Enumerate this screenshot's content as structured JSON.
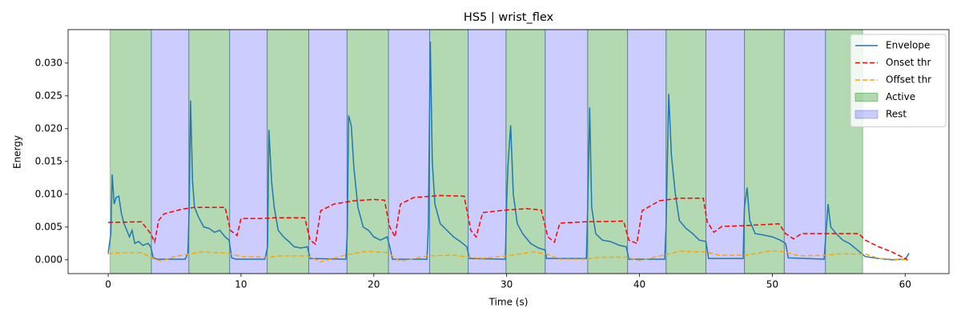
{
  "chart_data": {
    "type": "line",
    "title": "HS5 | wrist_flex",
    "xlabel": "Time (s)",
    "ylabel": "Energy",
    "xlim": [
      -3.02,
      63.3
    ],
    "ylim": [
      -0.0021,
      0.0351
    ],
    "xticks": [
      0,
      10,
      20,
      30,
      40,
      50,
      60
    ],
    "yticks": [
      {
        "value": 0,
        "label": "0.000"
      },
      0.005,
      {
        "value": 0.01,
        "label": "0.010"
      },
      0.015,
      {
        "value": 0.02,
        "label": "0.020"
      },
      0.025,
      {
        "value": 0.03,
        "label": "0.030"
      }
    ],
    "legend": "upper right",
    "series": [
      {
        "name": "Envelope",
        "color": "#1f77b4",
        "linestyle": "solid",
        "x": [
          0,
          0.2,
          0.3,
          0.45,
          0.6,
          0.8,
          1.0,
          1.2,
          1.4,
          1.6,
          1.8,
          2.0,
          2.3,
          2.6,
          3.0,
          3.2,
          3.4,
          3.7,
          5.8,
          6.0,
          6.1,
          6.2,
          6.35,
          6.5,
          6.8,
          7.2,
          7.6,
          8.0,
          8.4,
          8.8,
          9.1,
          9.3,
          9.6,
          11.8,
          12.0,
          12.1,
          12.3,
          12.5,
          12.8,
          13.2,
          13.6,
          14.0,
          14.5,
          15.0,
          15.2,
          17.9,
          18.0,
          18.1,
          18.3,
          18.5,
          18.8,
          19.2,
          19.6,
          20.0,
          20.5,
          21.0,
          21.2,
          21.4,
          24.0,
          24.1,
          24.25,
          24.4,
          24.6,
          25.0,
          25.5,
          26.0,
          26.5,
          27.0,
          27.2,
          29.9,
          30.0,
          30.1,
          30.3,
          30.5,
          30.8,
          31.2,
          31.8,
          32.4,
          32.9,
          33.0,
          36.0,
          36.1,
          36.25,
          36.4,
          36.7,
          37.2,
          37.8,
          38.5,
          39.0,
          39.2,
          41.9,
          42.0,
          42.2,
          42.4,
          42.7,
          43.0,
          43.5,
          44.0,
          44.5,
          45.0,
          45.2,
          47.8,
          47.9,
          48.1,
          48.3,
          48.7,
          49.3,
          50.0,
          50.6,
          51.0,
          51.2,
          53.9,
          54.0,
          54.2,
          54.4,
          54.8,
          55.3,
          55.8,
          56.4,
          57.0,
          58,
          59,
          60.0,
          60.3
        ],
        "values": [
          0.001,
          0.004,
          0.013,
          0.0085,
          0.0095,
          0.0097,
          0.007,
          0.0055,
          0.0045,
          0.0035,
          0.0045,
          0.0025,
          0.0028,
          0.0022,
          0.0025,
          0.002,
          0.0003,
          0.0001,
          0.0001,
          0.001,
          0.008,
          0.0243,
          0.012,
          0.008,
          0.0065,
          0.005,
          0.0048,
          0.0042,
          0.0045,
          0.0035,
          0.003,
          0.0003,
          0.0001,
          0.0001,
          0.002,
          0.0198,
          0.012,
          0.008,
          0.0045,
          0.0035,
          0.0028,
          0.002,
          0.0018,
          0.002,
          0.0002,
          0.0001,
          0.004,
          0.022,
          0.0205,
          0.014,
          0.008,
          0.005,
          0.0045,
          0.0035,
          0.003,
          0.0035,
          0.002,
          0.0001,
          0.0001,
          0.005,
          0.0333,
          0.015,
          0.0085,
          0.0055,
          0.0045,
          0.0035,
          0.0028,
          0.002,
          0.0002,
          0.0001,
          0.009,
          0.0145,
          0.0205,
          0.01,
          0.0055,
          0.004,
          0.0025,
          0.0018,
          0.0015,
          0.0002,
          0.0002,
          0.008,
          0.0232,
          0.008,
          0.004,
          0.003,
          0.0028,
          0.0022,
          0.002,
          0.0001,
          0.0001,
          0.005,
          0.0253,
          0.016,
          0.01,
          0.006,
          0.0048,
          0.004,
          0.003,
          0.0028,
          0.0002,
          0.0002,
          0.008,
          0.011,
          0.006,
          0.004,
          0.0038,
          0.0035,
          0.003,
          0.0025,
          0.0003,
          0.0001,
          0.003,
          0.0085,
          0.005,
          0.004,
          0.003,
          0.0025,
          0.0015,
          0.0005,
          0.0002,
          0.0,
          0.0001,
          0.001
        ]
      },
      {
        "name": "Onset thr",
        "color": "#ff0000",
        "linestyle": "dashed",
        "x": [
          0,
          2.5,
          3.2,
          3.5,
          3.8,
          4.2,
          5.5,
          6.5,
          8.8,
          9.2,
          9.7,
          10.0,
          11.5,
          12.5,
          14.8,
          15.2,
          15.6,
          16.0,
          17,
          18.5,
          20,
          20.8,
          21.2,
          21.6,
          22,
          23,
          25,
          26.8,
          27.3,
          27.7,
          28.2,
          30,
          31.5,
          32.6,
          33.1,
          33.6,
          34,
          36,
          38.8,
          39.2,
          39.8,
          40.2,
          41.5,
          43,
          44.8,
          45.1,
          45.6,
          46.2,
          47.8,
          50.5,
          51.0,
          51.6,
          52.2,
          54,
          56.5,
          57,
          58,
          59,
          60.2
        ],
        "values": [
          0.0057,
          0.0058,
          0.004,
          0.0027,
          0.006,
          0.007,
          0.0077,
          0.008,
          0.008,
          0.0045,
          0.0037,
          0.0063,
          0.0063,
          0.0064,
          0.0064,
          0.003,
          0.0024,
          0.0075,
          0.0085,
          0.009,
          0.0092,
          0.0091,
          0.005,
          0.0035,
          0.0085,
          0.0095,
          0.0098,
          0.0097,
          0.0045,
          0.0035,
          0.0072,
          0.0076,
          0.0078,
          0.0076,
          0.0035,
          0.0027,
          0.0056,
          0.0058,
          0.0059,
          0.003,
          0.0025,
          0.0075,
          0.009,
          0.0094,
          0.0094,
          0.0058,
          0.0042,
          0.0051,
          0.0052,
          0.0055,
          0.004,
          0.0032,
          0.004,
          0.004,
          0.004,
          0.003,
          0.002,
          0.0012,
          0.0
        ]
      },
      {
        "name": "Offset thr",
        "color": "#ffa500",
        "linestyle": "dashed",
        "x": [
          0,
          1,
          2.5,
          3.5,
          4,
          5,
          7,
          9,
          10,
          12,
          13,
          15,
          16,
          18,
          19.5,
          21,
          22,
          24,
          26,
          28,
          30,
          32,
          33,
          34,
          36,
          37,
          39,
          40,
          42,
          43,
          45,
          46,
          48,
          50,
          51,
          52,
          54,
          55,
          57,
          58,
          60.2
        ],
        "values": [
          0.0009,
          0.0011,
          0.0011,
          0.0001,
          -0.0002,
          0.0005,
          0.0012,
          0.001,
          0.0005,
          0.0004,
          0.0006,
          0.0006,
          -0.0003,
          0.0008,
          0.0013,
          0.0011,
          -0.0002,
          0.0006,
          0.0007,
          0.0002,
          0.0006,
          0.0012,
          0.0009,
          0.0001,
          0.0001,
          0.0004,
          0.0004,
          -0.0001,
          0.0008,
          0.0013,
          0.0012,
          0.0007,
          0.0007,
          0.0014,
          0.0012,
          0.0006,
          0.0007,
          0.0009,
          0.0009,
          0.0002,
          0.0
        ]
      },
      {
        "name": "Active",
        "color": "#008000",
        "alpha": 0.3,
        "spans": [
          [
            0.15,
            3.25
          ],
          [
            6.07,
            9.14
          ],
          [
            11.97,
            15.1
          ],
          [
            17.98,
            21.1
          ],
          [
            24.2,
            27.1
          ],
          [
            29.95,
            32.9
          ],
          [
            36.1,
            39.1
          ],
          [
            42.0,
            45.0
          ],
          [
            47.9,
            50.9
          ],
          [
            54.0,
            56.8
          ]
        ]
      },
      {
        "name": "Rest",
        "color": "#0000ff",
        "alpha": 0.2,
        "spans": [
          [
            3.25,
            6.07
          ],
          [
            9.14,
            11.97
          ],
          [
            15.1,
            17.98
          ],
          [
            21.1,
            24.2
          ],
          [
            27.1,
            29.95
          ],
          [
            32.9,
            36.1
          ],
          [
            39.1,
            42.0
          ],
          [
            45.0,
            47.9
          ],
          [
            50.9,
            54.0
          ]
        ]
      }
    ]
  }
}
